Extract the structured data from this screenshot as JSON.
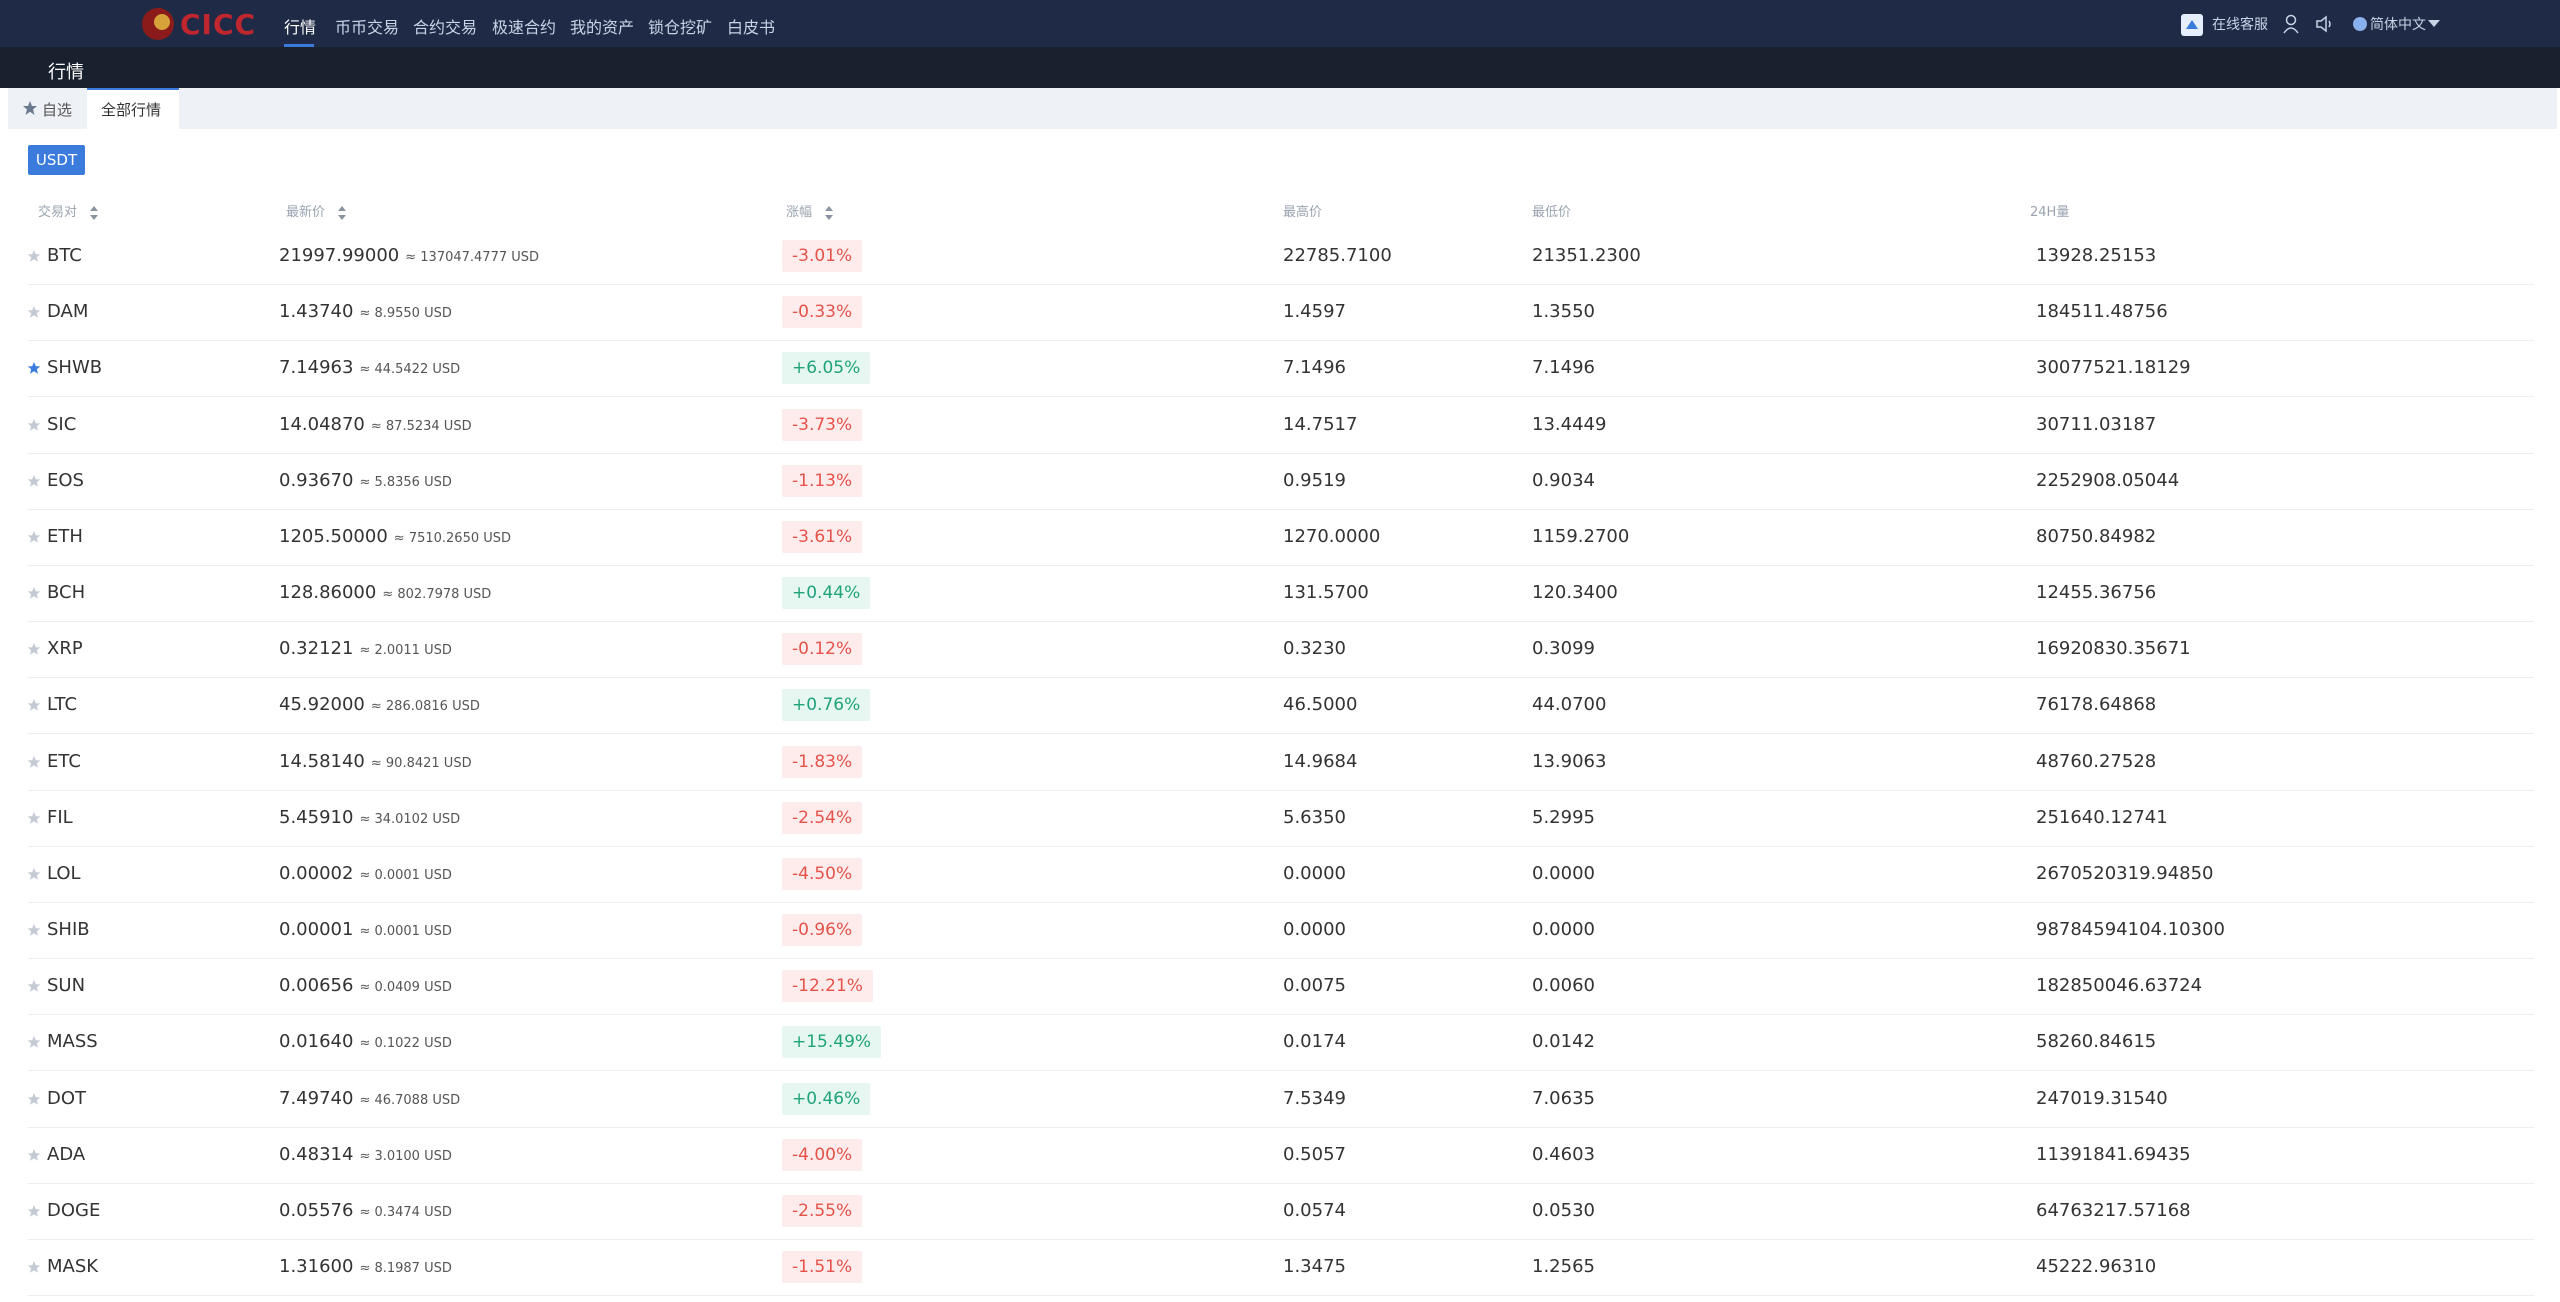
{
  "nav": {
    "logo": "CICC",
    "items": [
      "行情",
      "币币交易",
      "合约交易",
      "极速合约",
      "我的资产",
      "锁仓挖矿",
      "白皮书"
    ],
    "service": "在线客服",
    "language": "简体中文"
  },
  "subheader": {
    "title": "行情"
  },
  "tabs": [
    "自选",
    "全部行情"
  ],
  "currency": "USDT",
  "table": {
    "headers": [
      "交易对",
      "最新价",
      "涨幅",
      "最高价",
      "最低价",
      "24H量"
    ],
    "rows": [
      {
        "pair": "BTC",
        "price": "21997.99000",
        "approx": "≈ 137047.4777 USD",
        "change": "-3.01%",
        "high": "22785.7100",
        "low": "21351.2300",
        "volume": "13928.25153"
      },
      {
        "pair": "DAM",
        "price": "1.43740",
        "approx": "≈ 8.9550 USD",
        "change": "-0.33%",
        "high": "1.4597",
        "low": "1.3550",
        "volume": "184511.48756"
      },
      {
        "pair": "SHWB",
        "price": "7.14963",
        "approx": "≈ 44.5422 USD",
        "change": "+6.05%",
        "high": "7.1496",
        "low": "7.1496",
        "volume": "30077521.18129",
        "starred": true
      },
      {
        "pair": "SIC",
        "price": "14.04870",
        "approx": "≈ 87.5234 USD",
        "change": "-3.73%",
        "high": "14.7517",
        "low": "13.4449",
        "volume": "30711.03187"
      },
      {
        "pair": "EOS",
        "price": "0.93670",
        "approx": "≈ 5.8356 USD",
        "change": "-1.13%",
        "high": "0.9519",
        "low": "0.9034",
        "volume": "2252908.05044"
      },
      {
        "pair": "ETH",
        "price": "1205.50000",
        "approx": "≈ 7510.2650 USD",
        "change": "-3.61%",
        "high": "1270.0000",
        "low": "1159.2700",
        "volume": "80750.84982"
      },
      {
        "pair": "BCH",
        "price": "128.86000",
        "approx": "≈ 802.7978 USD",
        "change": "+0.44%",
        "high": "131.5700",
        "low": "120.3400",
        "volume": "12455.36756"
      },
      {
        "pair": "XRP",
        "price": "0.32121",
        "approx": "≈ 2.0011 USD",
        "change": "-0.12%",
        "high": "0.3230",
        "low": "0.3099",
        "volume": "16920830.35671"
      },
      {
        "pair": "LTC",
        "price": "45.92000",
        "approx": "≈ 286.0816 USD",
        "change": "+0.76%",
        "high": "46.5000",
        "low": "44.0700",
        "volume": "76178.64868"
      },
      {
        "pair": "ETC",
        "price": "14.58140",
        "approx": "≈ 90.8421 USD",
        "change": "-1.83%",
        "high": "14.9684",
        "low": "13.9063",
        "volume": "48760.27528"
      },
      {
        "pair": "FIL",
        "price": "5.45910",
        "approx": "≈ 34.0102 USD",
        "change": "-2.54%",
        "high": "5.6350",
        "low": "5.2995",
        "volume": "251640.12741"
      },
      {
        "pair": "LOL",
        "price": "0.00002",
        "approx": "≈ 0.0001 USD",
        "change": "-4.50%",
        "high": "0.0000",
        "low": "0.0000",
        "volume": "2670520319.94850"
      },
      {
        "pair": "SHIB",
        "price": "0.00001",
        "approx": "≈ 0.0001 USD",
        "change": "-0.96%",
        "high": "0.0000",
        "low": "0.0000",
        "volume": "98784594104.10300"
      },
      {
        "pair": "SUN",
        "price": "0.00656",
        "approx": "≈ 0.0409 USD",
        "change": "-12.21%",
        "high": "0.0075",
        "low": "0.0060",
        "volume": "182850046.63724"
      },
      {
        "pair": "MASS",
        "price": "0.01640",
        "approx": "≈ 0.1022 USD",
        "change": "+15.49%",
        "high": "0.0174",
        "low": "0.0142",
        "volume": "58260.84615"
      },
      {
        "pair": "DOT",
        "price": "7.49740",
        "approx": "≈ 46.7088 USD",
        "change": "+0.46%",
        "high": "7.5349",
        "low": "7.0635",
        "volume": "247019.31540"
      },
      {
        "pair": "ADA",
        "price": "0.48314",
        "approx": "≈ 3.0100 USD",
        "change": "-4.00%",
        "high": "0.5057",
        "low": "0.4603",
        "volume": "11391841.69435"
      },
      {
        "pair": "DOGE",
        "price": "0.05576",
        "approx": "≈ 0.3474 USD",
        "change": "-2.55%",
        "high": "0.0574",
        "low": "0.0530",
        "volume": "64763217.57168"
      },
      {
        "pair": "MASK",
        "price": "1.31600",
        "approx": "≈ 8.1987 USD",
        "change": "-1.51%",
        "high": "1.3475",
        "low": "1.2565",
        "volume": "45222.96310"
      }
    ]
  }
}
